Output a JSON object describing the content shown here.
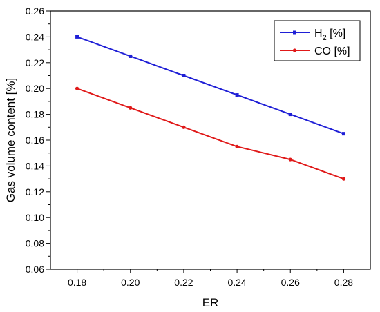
{
  "chart_data": {
    "type": "line",
    "xlabel": "ER",
    "ylabel": "Gas volume content [%]",
    "xlim": [
      0.17,
      0.29
    ],
    "ylim": [
      0.06,
      0.26
    ],
    "xticks": [
      "0.18",
      "0.20",
      "0.22",
      "0.24",
      "0.26",
      "0.28"
    ],
    "yticks": [
      "0.06",
      "0.08",
      "0.10",
      "0.12",
      "0.14",
      "0.16",
      "0.18",
      "0.20",
      "0.22",
      "0.24",
      "0.26"
    ],
    "x": [
      0.18,
      0.2,
      0.22,
      0.24,
      0.26,
      0.28
    ],
    "series": [
      {
        "name": "H2 [%]",
        "name_main": "H",
        "name_sub": "2",
        "name_tail": " [%]",
        "color": "#1f1fd6",
        "values": [
          0.24,
          0.225,
          0.21,
          0.195,
          0.18,
          0.165
        ]
      },
      {
        "name": "CO [%]",
        "name_main": "CO [%]",
        "name_sub": "",
        "name_tail": "",
        "color": "#e01919",
        "values": [
          0.2,
          0.185,
          0.17,
          0.155,
          0.145,
          0.13
        ]
      }
    ],
    "legend": "top-right",
    "grid": false
  }
}
